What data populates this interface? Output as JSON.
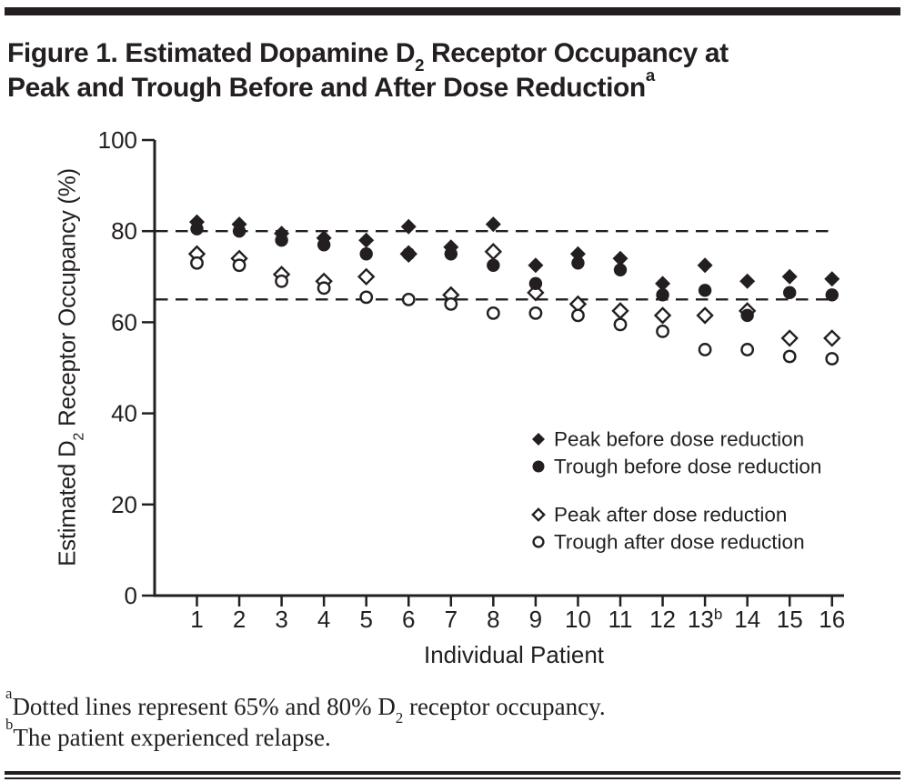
{
  "figure": {
    "ink_color": "#231f20",
    "title": {
      "line1": {
        "pre": "Figure 1. Estimated Dopamine D",
        "sub": "2",
        "post": " Receptor Occupancy at"
      },
      "line2": {
        "text": "Peak and Trough Before and After Dose Reduction",
        "sup": "a"
      }
    },
    "footnotes": [
      {
        "marker": "a",
        "pre": "Dotted lines represent 65% and 80% D",
        "sub": "2",
        "post": " receptor occupancy."
      },
      {
        "marker": "b",
        "pre": "The patient experienced relapse.",
        "sub": "",
        "post": ""
      }
    ]
  },
  "chart_data": {
    "type": "scatter",
    "title": "Figure 1. Estimated Dopamine D2 Receptor Occupancy at Peak and Trough Before and After Dose Reduction",
    "xlabel": "Individual Patient",
    "ylabel": {
      "pre": "Estimated D",
      "sub": "2",
      "post": " Receptor Occupancy (%)"
    },
    "ylim": [
      0,
      100
    ],
    "yticks": [
      0,
      20,
      40,
      60,
      80,
      100
    ],
    "grid": false,
    "legend_position": "inside-right",
    "reference_lines": [
      {
        "value": 80,
        "style": "dashed"
      },
      {
        "value": 65,
        "style": "dashed"
      }
    ],
    "xticks": [
      {
        "label": "1"
      },
      {
        "label": "2"
      },
      {
        "label": "3"
      },
      {
        "label": "4"
      },
      {
        "label": "5"
      },
      {
        "label": "6"
      },
      {
        "label": "7"
      },
      {
        "label": "8"
      },
      {
        "label": "9"
      },
      {
        "label": "10"
      },
      {
        "label": "11"
      },
      {
        "label": "12"
      },
      {
        "label": "13",
        "sup": "b"
      },
      {
        "label": "14"
      },
      {
        "label": "15"
      },
      {
        "label": "16"
      }
    ],
    "x_values": [
      1,
      2,
      3,
      4,
      5,
      6,
      7,
      8,
      9,
      10,
      11,
      12,
      13,
      14,
      15,
      16
    ],
    "series": [
      {
        "name": "Peak before dose reduction",
        "marker": "filled-diamond",
        "values": [
          82,
          81.5,
          79.5,
          78.5,
          78,
          81,
          76.5,
          81.5,
          72.5,
          75,
          74,
          68.5,
          72.5,
          69,
          70,
          69.5
        ]
      },
      {
        "name": "Trough before dose reduction",
        "marker": "filled-circle",
        "values": [
          80.5,
          80,
          78,
          77,
          75,
          75,
          75,
          72.5,
          68.5,
          73,
          71.5,
          66,
          67,
          61.5,
          66.5,
          66
        ]
      },
      {
        "name": "Peak after dose reduction",
        "marker": "open-diamond",
        "values": [
          75,
          74,
          70.5,
          69,
          70,
          75,
          66,
          75.5,
          66.5,
          64,
          62.5,
          61.5,
          61.5,
          62.5,
          56.5,
          56.5
        ]
      },
      {
        "name": "Trough after dose reduction",
        "marker": "open-circle",
        "values": [
          73,
          72.5,
          69,
          67.5,
          65.5,
          65,
          64,
          62,
          62,
          61.5,
          59.5,
          58,
          54,
          54,
          52.5,
          52
        ]
      }
    ]
  }
}
